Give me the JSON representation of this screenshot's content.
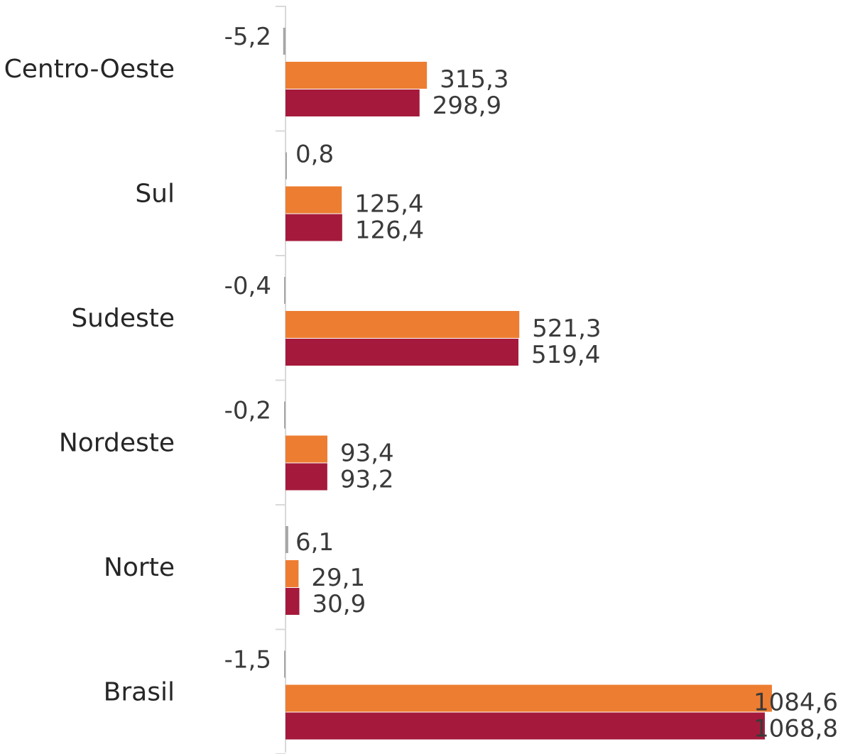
{
  "chart_data": {
    "type": "bar",
    "orientation": "horizontal",
    "categories": [
      "Centro-Oeste",
      "Sul",
      "Sudeste",
      "Nordeste",
      "Norte",
      "Brasil"
    ],
    "series": [
      {
        "color": "#a6a6a6",
        "values": [
          -5.2,
          0.8,
          -0.4,
          -0.2,
          6.1,
          -1.5
        ],
        "labels": [
          "-5,2",
          "0,8",
          "-0,4",
          "-0,2",
          "6,1",
          "-1,5"
        ]
      },
      {
        "color": "#ed7d31",
        "values": [
          315.3,
          125.4,
          521.3,
          93.4,
          29.1,
          1084.6
        ],
        "labels": [
          "315,3",
          "125,4",
          "521,3",
          "93,4",
          "29,1",
          "1084,6"
        ]
      },
      {
        "color": "#a51a3c",
        "values": [
          298.9,
          126.4,
          519.4,
          93.2,
          30.9,
          1068.8
        ],
        "labels": [
          "298,9",
          "126,4",
          "519,4",
          "93,2",
          "30,9",
          "1068,8"
        ]
      }
    ],
    "xlim": [
      -10,
      1100
    ],
    "grid": false,
    "legend": "none",
    "title": "",
    "xlabel": "",
    "ylabel": ""
  }
}
